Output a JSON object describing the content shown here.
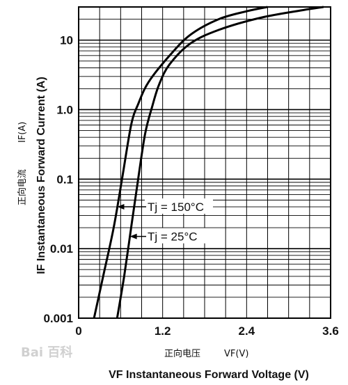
{
  "chart_data": {
    "type": "line",
    "title": "",
    "xlabel_cn": "正向电压",
    "xlabel_symbol": "VF(V)",
    "xlabel": "VF Instantaneous Forward Voltage (V)",
    "ylabel_cn": "正向电流",
    "ylabel_symbol": "IF(A)",
    "ylabel": "IF Instantaneous Forward Current (A)",
    "xlim": [
      0,
      3.6
    ],
    "ylim": [
      0.001,
      30
    ],
    "yscale": "log",
    "grid": true,
    "x_ticks": [
      "0",
      "1.2",
      "2.4",
      "3.6"
    ],
    "y_ticks": [
      "0.001",
      "0.01",
      "0.1",
      "1.0",
      "10"
    ],
    "x_tick_values": [
      0,
      1.2,
      2.4,
      3.6
    ],
    "y_tick_values": [
      0.001,
      0.01,
      0.1,
      1.0,
      10
    ],
    "series": [
      {
        "name": "Tj = 150°C",
        "x": [
          0.22,
          0.35,
          0.5,
          0.62,
          0.75,
          0.85,
          1.0,
          1.3,
          1.6,
          2.0,
          2.4,
          2.7
        ],
        "y": [
          0.001,
          0.004,
          0.02,
          0.1,
          0.6,
          1.2,
          2.5,
          6,
          12,
          20,
          26,
          30
        ]
      },
      {
        "name": "Tj = 25°C",
        "x": [
          0.55,
          0.65,
          0.75,
          0.85,
          0.95,
          1.05,
          1.15,
          1.3,
          1.6,
          2.0,
          2.6,
          3.2,
          3.5
        ],
        "y": [
          0.001,
          0.004,
          0.02,
          0.1,
          0.45,
          1.1,
          2.3,
          4.5,
          9,
          14,
          21,
          27,
          30
        ]
      }
    ],
    "annotations": [
      {
        "text": "Tj = 150°C",
        "series": 0,
        "at_y": 0.04
      },
      {
        "text": "Tj = 25°C",
        "series": 1,
        "at_y": 0.015
      }
    ],
    "watermark": "Bai 百科"
  }
}
